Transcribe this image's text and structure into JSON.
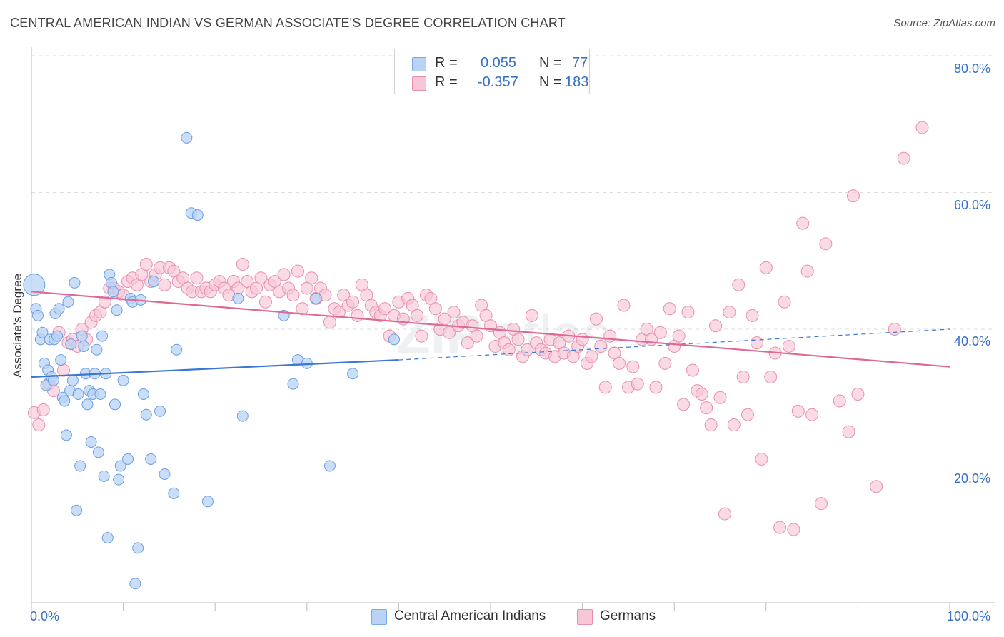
{
  "header": {
    "title": "CENTRAL AMERICAN INDIAN VS GERMAN ASSOCIATE'S DEGREE CORRELATION CHART",
    "source": "Source: ZipAtlas.com"
  },
  "legend": {
    "r_label": "R =",
    "n_label": "N =",
    "rows": [
      {
        "r": "0.055",
        "n": "77",
        "color": "#7aaae8",
        "fill": "#b9d3f5"
      },
      {
        "r": "-0.357",
        "n": "183",
        "color": "#e88fad",
        "fill": "#f8c6d6"
      }
    ]
  },
  "bottom_legend": {
    "items": [
      {
        "label": "Central American Indians"
      },
      {
        "label": "Germans"
      }
    ]
  },
  "axes": {
    "ylabel": "Associate's Degree",
    "x_min_label": "0.0%",
    "x_max_label": "100.0%",
    "y_ticks": [
      "20.0%",
      "40.0%",
      "60.0%",
      "80.0%"
    ]
  },
  "chart_data": {
    "type": "scatter",
    "title": "CENTRAL AMERICAN INDIAN VS GERMAN ASSOCIATE'S DEGREE CORRELATION CHART",
    "xlabel": "",
    "ylabel": "Associate's Degree",
    "xlim": [
      0,
      100
    ],
    "ylim": [
      0,
      80
    ],
    "grid": true,
    "legend_position": "top-center",
    "colors": {
      "blue": "#3a78d4",
      "blue_fill": "#b9d3f5",
      "pink": "#e06896",
      "pink_fill": "#f8c6d6"
    },
    "series": [
      {
        "name": "Central American Indians",
        "r": 0.055,
        "n": 77,
        "trend": {
          "x0": 0,
          "y0": 33.0,
          "x1": 40,
          "y1": 35.5,
          "dash_to_x": 100,
          "dash_to_y": 40.0
        },
        "points": [
          [
            0.3,
            46.5
          ],
          [
            0.5,
            43.0
          ],
          [
            0.7,
            42.0
          ],
          [
            1.0,
            38.5
          ],
          [
            1.2,
            39.5
          ],
          [
            1.4,
            35.0
          ],
          [
            1.6,
            31.8
          ],
          [
            1.8,
            34.0
          ],
          [
            2.0,
            38.5
          ],
          [
            2.2,
            33.0
          ],
          [
            2.4,
            32.5
          ],
          [
            2.5,
            38.5
          ],
          [
            2.6,
            42.3
          ],
          [
            2.8,
            39.0
          ],
          [
            3.0,
            43.0
          ],
          [
            3.2,
            35.5
          ],
          [
            3.4,
            30.0
          ],
          [
            3.6,
            29.5
          ],
          [
            3.8,
            24.5
          ],
          [
            4.0,
            44.0
          ],
          [
            4.2,
            31.0
          ],
          [
            4.3,
            37.8
          ],
          [
            4.5,
            32.5
          ],
          [
            4.7,
            46.8
          ],
          [
            4.9,
            13.5
          ],
          [
            5.1,
            30.5
          ],
          [
            5.3,
            20.0
          ],
          [
            5.5,
            39.0
          ],
          [
            5.7,
            37.5
          ],
          [
            5.9,
            33.5
          ],
          [
            6.1,
            29.0
          ],
          [
            6.3,
            31.0
          ],
          [
            6.5,
            23.5
          ],
          [
            6.7,
            30.5
          ],
          [
            6.9,
            33.5
          ],
          [
            7.1,
            37.0
          ],
          [
            7.3,
            22.0
          ],
          [
            7.5,
            30.5
          ],
          [
            7.7,
            39.0
          ],
          [
            7.9,
            18.5
          ],
          [
            8.1,
            33.5
          ],
          [
            8.3,
            9.5
          ],
          [
            8.5,
            48.0
          ],
          [
            8.7,
            46.8
          ],
          [
            8.9,
            45.5
          ],
          [
            9.1,
            29.0
          ],
          [
            9.3,
            42.8
          ],
          [
            9.5,
            18.0
          ],
          [
            9.7,
            20.0
          ],
          [
            10.0,
            32.5
          ],
          [
            10.5,
            21.0
          ],
          [
            10.8,
            44.5
          ],
          [
            11.0,
            44.0
          ],
          [
            11.3,
            2.8
          ],
          [
            11.6,
            8.0
          ],
          [
            11.9,
            44.3
          ],
          [
            12.2,
            30.5
          ],
          [
            12.5,
            27.5
          ],
          [
            13.0,
            21.0
          ],
          [
            13.3,
            47.0
          ],
          [
            14.0,
            28.0
          ],
          [
            14.5,
            18.8
          ],
          [
            15.5,
            16.0
          ],
          [
            15.8,
            37.0
          ],
          [
            16.9,
            68.0
          ],
          [
            17.4,
            57.0
          ],
          [
            18.1,
            56.7
          ],
          [
            19.2,
            14.8
          ],
          [
            22.5,
            44.5
          ],
          [
            23.0,
            27.3
          ],
          [
            27.5,
            42.0
          ],
          [
            28.5,
            32.0
          ],
          [
            29.0,
            35.5
          ],
          [
            30.0,
            35.0
          ],
          [
            31.0,
            44.5
          ],
          [
            32.5,
            20.0
          ],
          [
            35.0,
            33.5
          ],
          [
            39.5,
            38.5
          ]
        ]
      },
      {
        "name": "Germans",
        "r": -0.357,
        "n": 183,
        "trend": {
          "x0": 0,
          "y0": 45.5,
          "x1": 100,
          "y1": 34.5
        },
        "points": [
          [
            0.3,
            27.8
          ],
          [
            0.8,
            26.0
          ],
          [
            1.3,
            28.2
          ],
          [
            1.9,
            32.0
          ],
          [
            2.4,
            31.0
          ],
          [
            3.0,
            39.5
          ],
          [
            3.5,
            34.0
          ],
          [
            4.0,
            38.0
          ],
          [
            4.5,
            38.5
          ],
          [
            5.0,
            37.5
          ],
          [
            5.5,
            40.0
          ],
          [
            6.0,
            38.5
          ],
          [
            6.5,
            41.0
          ],
          [
            7.0,
            42.0
          ],
          [
            7.5,
            42.5
          ],
          [
            8.0,
            44.0
          ],
          [
            8.5,
            46.0
          ],
          [
            9.0,
            46.0
          ],
          [
            9.5,
            45.5
          ],
          [
            10.0,
            45.0
          ],
          [
            10.5,
            47.0
          ],
          [
            11.0,
            47.5
          ],
          [
            11.5,
            46.5
          ],
          [
            12.0,
            48.0
          ],
          [
            12.5,
            49.5
          ],
          [
            13.0,
            47.0
          ],
          [
            13.5,
            48.0
          ],
          [
            14.0,
            49.0
          ],
          [
            14.5,
            46.5
          ],
          [
            15.0,
            49.0
          ],
          [
            15.5,
            48.5
          ],
          [
            16.0,
            47.0
          ],
          [
            16.5,
            47.5
          ],
          [
            17.0,
            46.0
          ],
          [
            17.5,
            45.5
          ],
          [
            18.0,
            47.5
          ],
          [
            18.5,
            45.5
          ],
          [
            19.0,
            46.0
          ],
          [
            19.5,
            45.5
          ],
          [
            20.0,
            46.5
          ],
          [
            20.5,
            47.0
          ],
          [
            21.0,
            46.0
          ],
          [
            21.5,
            45.0
          ],
          [
            22.0,
            47.0
          ],
          [
            22.5,
            46.0
          ],
          [
            23.0,
            49.5
          ],
          [
            23.5,
            47.0
          ],
          [
            24.0,
            45.5
          ],
          [
            24.5,
            46.0
          ],
          [
            25.0,
            47.5
          ],
          [
            25.5,
            44.0
          ],
          [
            26.0,
            46.5
          ],
          [
            26.5,
            47.0
          ],
          [
            27.0,
            45.5
          ],
          [
            27.5,
            48.0
          ],
          [
            28.0,
            46.0
          ],
          [
            28.5,
            45.0
          ],
          [
            29.0,
            48.5
          ],
          [
            29.5,
            43.0
          ],
          [
            30.0,
            46.0
          ],
          [
            30.5,
            47.5
          ],
          [
            31.0,
            44.5
          ],
          [
            31.5,
            46.0
          ],
          [
            32.0,
            45.0
          ],
          [
            32.5,
            41.0
          ],
          [
            33.0,
            43.0
          ],
          [
            33.5,
            42.5
          ],
          [
            34.0,
            45.0
          ],
          [
            34.5,
            43.5
          ],
          [
            35.0,
            44.0
          ],
          [
            35.5,
            42.0
          ],
          [
            36.0,
            46.5
          ],
          [
            36.5,
            45.0
          ],
          [
            37.0,
            43.5
          ],
          [
            37.5,
            42.5
          ],
          [
            38.0,
            42.0
          ],
          [
            38.5,
            43.0
          ],
          [
            39.0,
            39.0
          ],
          [
            39.5,
            42.0
          ],
          [
            40.0,
            44.0
          ],
          [
            40.5,
            41.5
          ],
          [
            41.0,
            44.5
          ],
          [
            41.5,
            43.5
          ],
          [
            42.0,
            42.0
          ],
          [
            42.5,
            39.0
          ],
          [
            43.0,
            45.0
          ],
          [
            43.5,
            44.5
          ],
          [
            44.0,
            43.0
          ],
          [
            44.5,
            40.0
          ],
          [
            45.0,
            41.5
          ],
          [
            45.5,
            39.5
          ],
          [
            46.0,
            42.5
          ],
          [
            46.5,
            40.5
          ],
          [
            47.0,
            41.0
          ],
          [
            47.5,
            38.0
          ],
          [
            48.0,
            40.5
          ],
          [
            48.5,
            39.0
          ],
          [
            49.0,
            43.5
          ],
          [
            49.5,
            42.0
          ],
          [
            50.0,
            40.5
          ],
          [
            50.5,
            37.5
          ],
          [
            51.0,
            39.5
          ],
          [
            51.5,
            38.0
          ],
          [
            52.0,
            37.0
          ],
          [
            52.5,
            40.0
          ],
          [
            53.0,
            38.5
          ],
          [
            53.5,
            36.0
          ],
          [
            54.0,
            37.0
          ],
          [
            54.5,
            42.0
          ],
          [
            55.0,
            38.0
          ],
          [
            55.5,
            37.0
          ],
          [
            56.0,
            36.5
          ],
          [
            56.5,
            38.5
          ],
          [
            57.0,
            36.0
          ],
          [
            57.5,
            38.0
          ],
          [
            58.0,
            36.5
          ],
          [
            58.5,
            39.0
          ],
          [
            59.0,
            36.0
          ],
          [
            59.5,
            37.5
          ],
          [
            60.0,
            38.5
          ],
          [
            60.5,
            35.0
          ],
          [
            61.0,
            36.0
          ],
          [
            61.5,
            41.5
          ],
          [
            62.0,
            37.5
          ],
          [
            62.5,
            31.5
          ],
          [
            63.0,
            39.0
          ],
          [
            63.5,
            36.5
          ],
          [
            64.0,
            35.0
          ],
          [
            64.5,
            43.5
          ],
          [
            65.0,
            31.5
          ],
          [
            65.5,
            34.5
          ],
          [
            66.0,
            32.0
          ],
          [
            66.5,
            38.5
          ],
          [
            67.0,
            40.0
          ],
          [
            67.5,
            38.5
          ],
          [
            68.0,
            31.5
          ],
          [
            68.5,
            39.5
          ],
          [
            69.0,
            35.0
          ],
          [
            69.5,
            43.0
          ],
          [
            70.0,
            37.5
          ],
          [
            70.5,
            39.0
          ],
          [
            71.0,
            29.0
          ],
          [
            71.5,
            42.5
          ],
          [
            72.0,
            34.0
          ],
          [
            72.5,
            31.0
          ],
          [
            73.0,
            30.5
          ],
          [
            73.5,
            28.5
          ],
          [
            74.0,
            26.0
          ],
          [
            74.5,
            40.5
          ],
          [
            75.0,
            30.0
          ],
          [
            75.5,
            13.0
          ],
          [
            76.0,
            42.5
          ],
          [
            76.5,
            26.0
          ],
          [
            77.0,
            46.5
          ],
          [
            77.5,
            33.0
          ],
          [
            78.0,
            27.5
          ],
          [
            78.5,
            42.0
          ],
          [
            79.0,
            38.0
          ],
          [
            79.5,
            21.0
          ],
          [
            80.0,
            49.0
          ],
          [
            80.5,
            33.0
          ],
          [
            81.0,
            36.5
          ],
          [
            81.5,
            11.0
          ],
          [
            82.0,
            44.0
          ],
          [
            82.5,
            37.5
          ],
          [
            83.0,
            10.7
          ],
          [
            83.5,
            28.0
          ],
          [
            84.0,
            55.5
          ],
          [
            84.5,
            48.5
          ],
          [
            85.0,
            27.5
          ],
          [
            86.0,
            14.5
          ],
          [
            86.5,
            52.5
          ],
          [
            88.0,
            29.5
          ],
          [
            89.0,
            25.0
          ],
          [
            89.5,
            59.5
          ],
          [
            90.0,
            30.5
          ],
          [
            92.0,
            17.0
          ],
          [
            94.0,
            40.0
          ],
          [
            95.0,
            65.0
          ],
          [
            97.0,
            69.5
          ]
        ]
      }
    ]
  }
}
